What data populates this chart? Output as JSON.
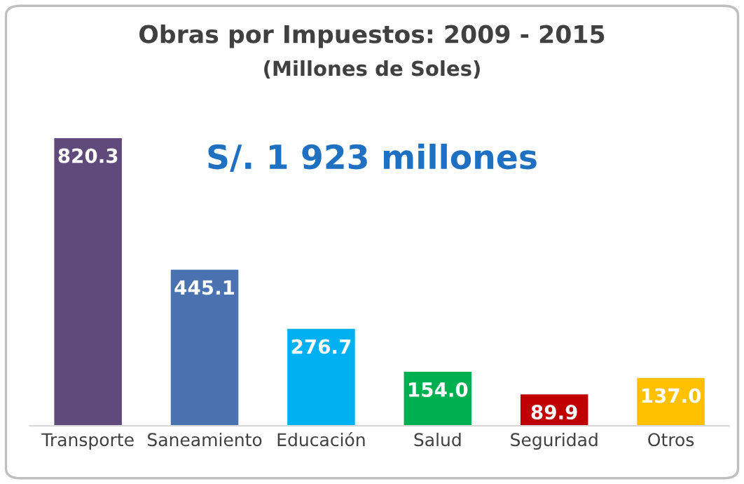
{
  "chart_data": {
    "type": "bar",
    "title": "Obras por Impuestos: 2009 - 2015",
    "subtitle": "(Millones de Soles)",
    "categories": [
      "Transporte",
      "Saneamiento",
      "Educación",
      "Salud",
      "Seguridad",
      "Otros"
    ],
    "values": [
      820.3,
      445.1,
      276.7,
      154.0,
      89.9,
      137.0
    ],
    "value_labels": [
      "820.3",
      "445.1",
      "276.7",
      "154.0",
      "89.9",
      "137.0"
    ],
    "colors": [
      "#5f4a7b",
      "#4a72b0",
      "#00b0f0",
      "#00b050",
      "#c00000",
      "#ffc000"
    ],
    "annotations": [
      "S/. 1 923 millones"
    ],
    "grid": false,
    "legend": false
  }
}
